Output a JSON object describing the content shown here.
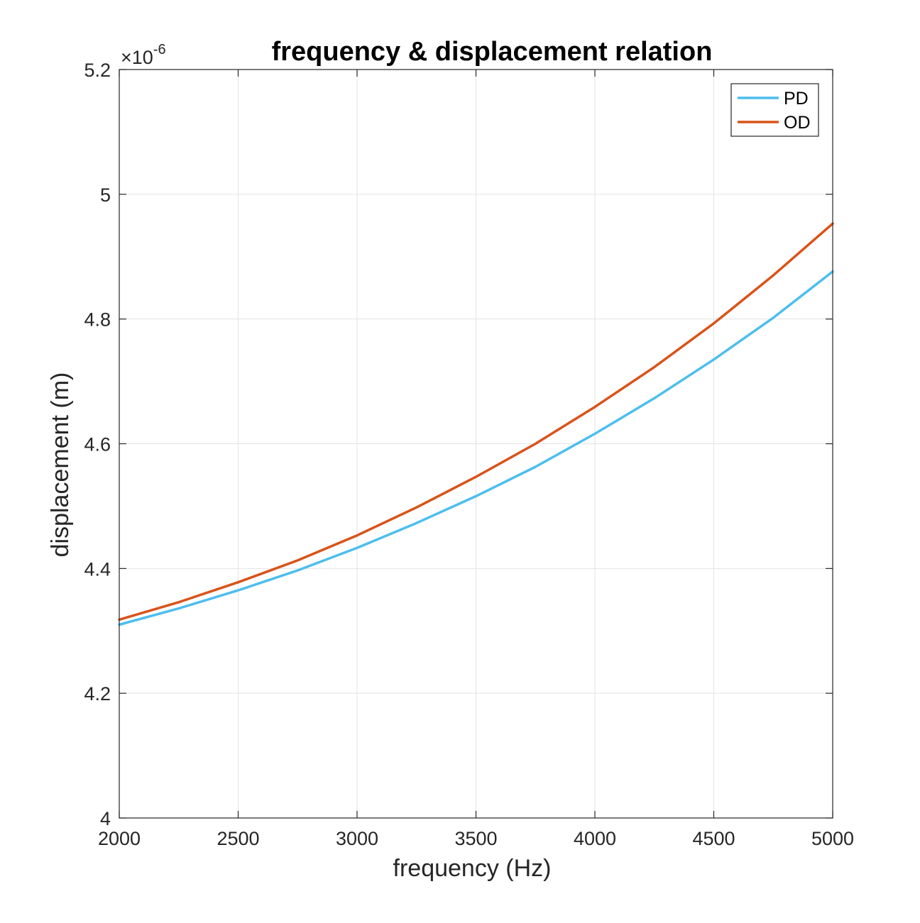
{
  "chart_data": {
    "type": "line",
    "title": "frequency & displacement relation",
    "xlabel": "frequency (Hz)",
    "ylabel": "displacement (m)",
    "xlim": [
      2000,
      5000
    ],
    "ylim": [
      4.0,
      5.2
    ],
    "y_multiplier": "×10",
    "y_exponent": "-6",
    "xticks": [
      "2000",
      "2500",
      "3000",
      "3500",
      "4000",
      "4500",
      "5000"
    ],
    "yticks": [
      "4",
      "4.2",
      "4.4",
      "4.6",
      "4.8",
      "5",
      "5.2"
    ],
    "grid": true,
    "legend_position": "top-right",
    "x": [
      2000,
      2250,
      2500,
      2750,
      3000,
      3250,
      3500,
      3750,
      4000,
      4250,
      4500,
      4750,
      5000
    ],
    "series": [
      {
        "name": "PD",
        "color": "#4DBEEE",
        "values": [
          4.31,
          4.336,
          4.365,
          4.397,
          4.433,
          4.473,
          4.516,
          4.563,
          4.616,
          4.673,
          4.735,
          4.802,
          4.876
        ]
      },
      {
        "name": "OD",
        "color": "#D95319",
        "values": [
          4.318,
          4.346,
          4.378,
          4.413,
          4.453,
          4.498,
          4.547,
          4.6,
          4.659,
          4.723,
          4.793,
          4.87,
          4.953
        ]
      }
    ]
  }
}
